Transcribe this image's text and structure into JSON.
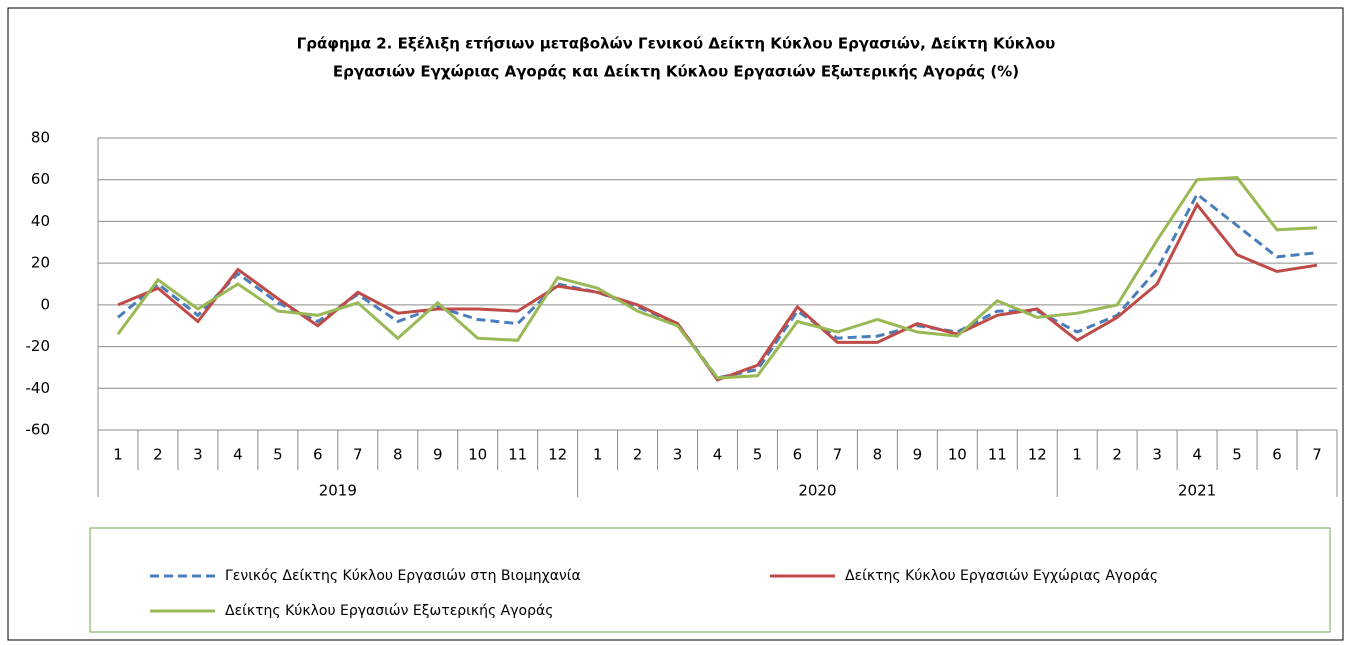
{
  "chart_data": {
    "type": "line",
    "title": [
      "Γράφημα 2. Εξέλιξη ετήσιων μεταβολών Γενικού Δείκτη Κύκλου Εργασιών,  Δείκτη Κύκλου",
      "Εργασιών Εγχώριας Αγοράς και Δείκτη Κύκλου Εργασιών Εξωτερικής Αγοράς (%)"
    ],
    "groups": [
      {
        "label": "2019",
        "categories": [
          "1",
          "2",
          "3",
          "4",
          "5",
          "6",
          "7",
          "8",
          "9",
          "10",
          "11",
          "12"
        ]
      },
      {
        "label": "2020",
        "categories": [
          "1",
          "2",
          "3",
          "4",
          "5",
          "6",
          "7",
          "8",
          "9",
          "10",
          "11",
          "12"
        ]
      },
      {
        "label": "2021",
        "categories": [
          "1",
          "2",
          "3",
          "4",
          "5",
          "6",
          "7"
        ]
      }
    ],
    "series": [
      {
        "name": "Γενικός Δείκτης Κύκλου Εργασιών στη Βιομηχανία",
        "color": "#4a7ebb",
        "line_style": "dashed",
        "values": [
          -6,
          10,
          -5,
          15,
          1,
          -8,
          5,
          -8,
          -1,
          -7,
          -9,
          10,
          6,
          -1,
          -9,
          -35,
          -31,
          -3,
          -16,
          -15,
          -10,
          -13,
          -3,
          -3,
          -13,
          -5,
          17,
          53,
          38,
          23,
          25
        ]
      },
      {
        "name": "Δείκτης Κύκλου Εργασιών Εγχώριας Αγοράς",
        "color": "#be4b48",
        "line_style": "solid",
        "values": [
          0,
          8,
          -8,
          17,
          3,
          -10,
          6,
          -4,
          -2,
          -2,
          -3,
          9,
          6,
          0,
          -9,
          -36,
          -29,
          -1,
          -18,
          -18,
          -9,
          -14,
          -5,
          -2,
          -17,
          -6,
          10,
          48,
          24,
          16,
          19
        ]
      },
      {
        "name": "Δείκτης Κύκλου Εργασιών Εξωτερικής Αγοράς",
        "color": "#98b954",
        "line_style": "solid",
        "values": [
          -14,
          12,
          -2,
          10,
          -3,
          -5,
          1,
          -16,
          1,
          -16,
          -17,
          13,
          8,
          -3,
          -10,
          -35,
          -34,
          -8,
          -13,
          -7,
          -13,
          -15,
          2,
          -6,
          -4,
          0,
          31,
          60,
          61,
          36,
          37
        ]
      }
    ],
    "ylim": [
      -60,
      80
    ],
    "yticks": [
      -60,
      -40,
      -20,
      0,
      20,
      40,
      60,
      80
    ],
    "grid": true,
    "legend": "bottom"
  }
}
